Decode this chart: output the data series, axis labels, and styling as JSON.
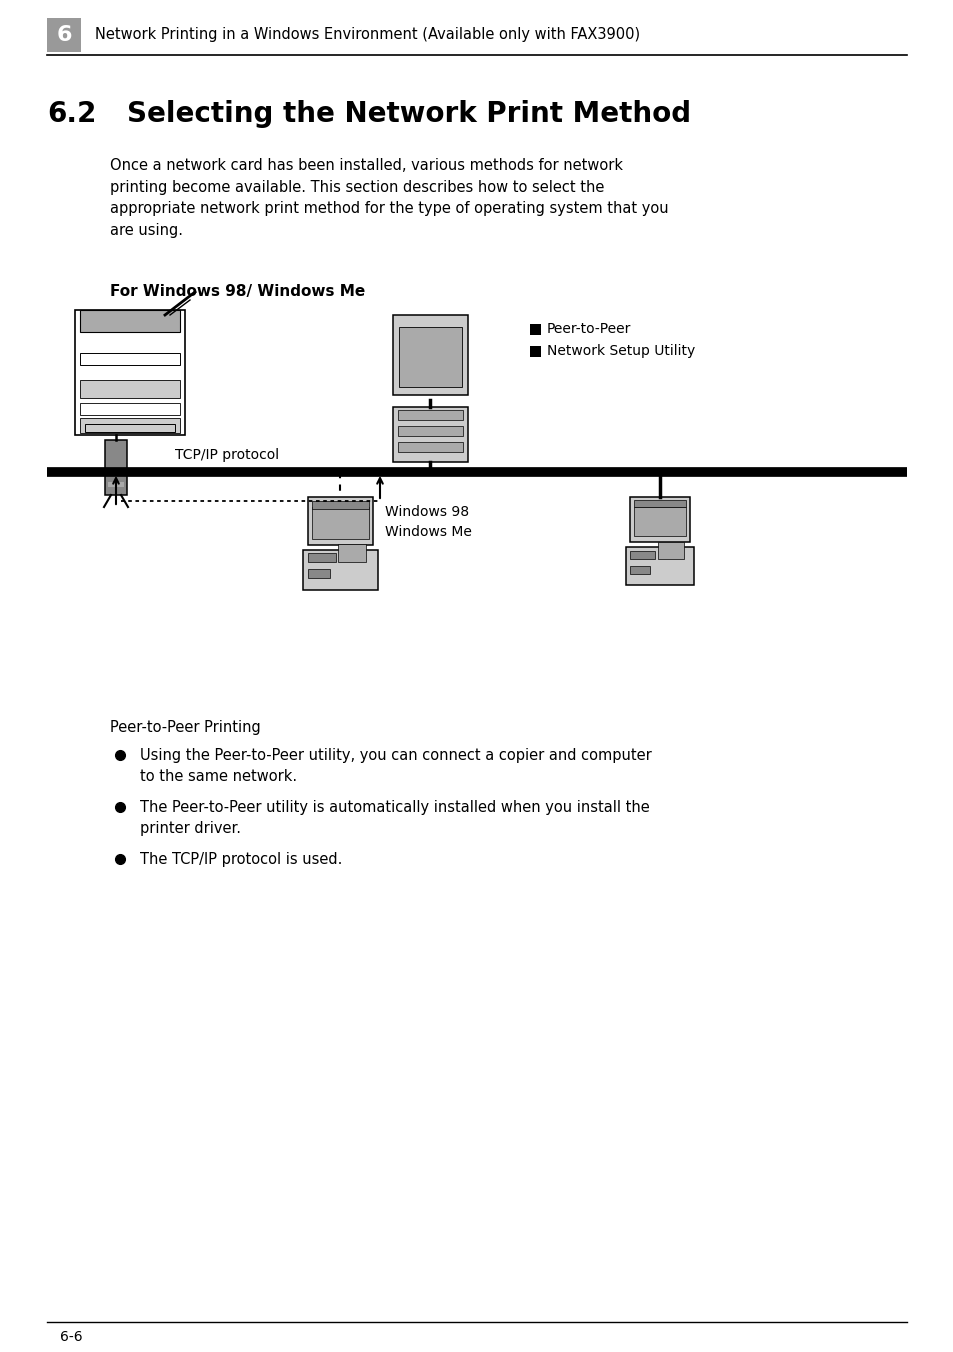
{
  "page_bg": "#ffffff",
  "header_number": "6",
  "header_text": "Network Printing in a Windows Environment (Available only with FAX3900)",
  "section_number": "6.2",
  "section_title": "Selecting the Network Print Method",
  "body_text": "Once a network card has been installed, various methods for network\nprinting become available. This section describes how to select the\nappropriate network print method for the type of operating system that you\nare using.",
  "subsection_title": "For Windows 98/ Windows Me",
  "legend_items": [
    "Peer-to-Peer",
    "Network Setup Utility"
  ],
  "tcpip_label": "TCP/IP protocol",
  "windows_label": "Windows 98\nWindows Me",
  "bullet_title": "Peer-to-Peer Printing",
  "bullets": [
    "Using the Peer-to-Peer utility, you can connect a copier and computer\nto the same network.",
    "The Peer-to-Peer utility is automatically installed when you install the\nprinter driver.",
    "The TCP/IP protocol is used."
  ],
  "footer_text": "6-6",
  "header_gray": "#999999",
  "light_gray": "#cccccc",
  "mid_gray": "#aaaaaa",
  "dark_gray": "#888888"
}
